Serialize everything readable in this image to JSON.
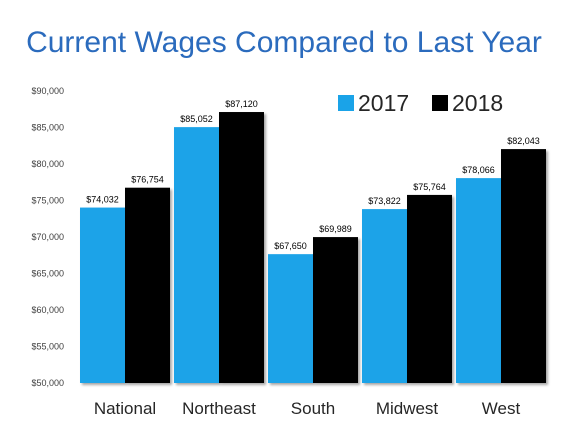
{
  "chart_data": {
    "type": "bar",
    "title": "Current Wages Compared to Last Year",
    "xlabel": "",
    "ylabel": "",
    "categories": [
      "National",
      "Northeast",
      "South",
      "Midwest",
      "West"
    ],
    "series": [
      {
        "name": "2017",
        "color": "#1aa3e8",
        "values": [
          74032,
          85052,
          67650,
          73822,
          78066
        ],
        "labels": [
          "$74,032",
          "$85,052",
          "$67,650",
          "$73,822",
          "$78,066"
        ]
      },
      {
        "name": "2018",
        "color": "#000000",
        "values": [
          76754,
          87120,
          69989,
          75764,
          82043
        ],
        "labels": [
          "$76,754",
          "$87,120",
          "$69,989",
          "$75,764",
          "$82,043"
        ]
      }
    ],
    "ylim": [
      50000,
      90000
    ],
    "yticks": [
      50000,
      55000,
      60000,
      65000,
      70000,
      75000,
      80000,
      85000,
      90000
    ],
    "ytick_labels": [
      "$50,000",
      "$55,000",
      "$60,000",
      "$65,000",
      "$70,000",
      "$75,000",
      "$80,000",
      "$85,000",
      "$90,000"
    ],
    "grid": false,
    "legend_position": "top-right"
  }
}
